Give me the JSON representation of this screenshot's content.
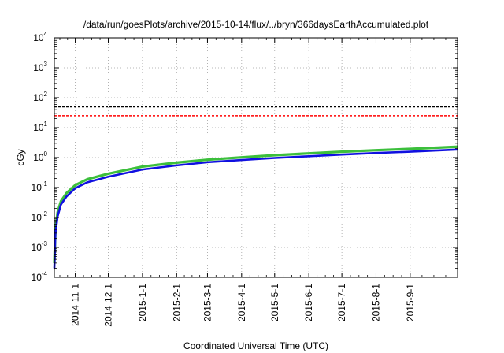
{
  "chart_data": {
    "type": "line",
    "title": "/data/run/goesPlots/archive/2015-10-14/flux/../bryn/366daysEarthAccumulated.plot",
    "xlabel": "Coordinated Universal Time (UTC)",
    "ylabel": "cGy",
    "yscale": "log",
    "x_start": "2014-10-13",
    "x_end": "2015-10-14",
    "ylim": [
      0.0001,
      10000
    ],
    "grid": true,
    "x_ticks": [
      "2014-11-1",
      "2014-12-1",
      "2015-1-1",
      "2015-2-1",
      "2015-3-1",
      "2015-4-1",
      "2015-5-1",
      "2015-6-1",
      "2015-7-1",
      "2015-8-1",
      "2015-9-1"
    ],
    "y_ticks": [
      {
        "base": "10",
        "exp": "-4"
      },
      {
        "base": "10",
        "exp": "-3"
      },
      {
        "base": "10",
        "exp": "-2"
      },
      {
        "base": "10",
        "exp": "-1"
      },
      {
        "base": "10",
        "exp": "0"
      },
      {
        "base": "10",
        "exp": "1"
      },
      {
        "base": "10",
        "exp": "2"
      },
      {
        "base": "10",
        "exp": "3"
      },
      {
        "base": "10",
        "exp": "4"
      }
    ],
    "thresholds": [
      {
        "value": 50,
        "color": "#000000",
        "style": "dashed"
      },
      {
        "value": 25,
        "color": "#ff0000",
        "style": "dashed"
      }
    ],
    "series": [
      {
        "color": "#3cbf3c",
        "x": [
          "2014-10-13",
          "2014-10-14",
          "2014-10-16",
          "2014-10-19",
          "2014-10-24",
          "2014-11-1",
          "2014-11-12",
          "2014-12-1",
          "2015-1-1",
          "2015-2-1",
          "2015-3-1",
          "2015-4-1",
          "2015-5-1",
          "2015-6-1",
          "2015-7-1",
          "2015-8-1",
          "2015-9-1",
          "2015-10-14"
        ],
        "y": [
          0.0003,
          0.004,
          0.015,
          0.035,
          0.065,
          0.12,
          0.19,
          0.29,
          0.5,
          0.68,
          0.85,
          1.02,
          1.2,
          1.38,
          1.56,
          1.76,
          1.95,
          2.3
        ]
      },
      {
        "color": "#1010e0",
        "x": [
          "2014-10-13",
          "2014-10-14",
          "2014-10-16",
          "2014-10-19",
          "2014-10-24",
          "2014-11-1",
          "2014-11-12",
          "2014-12-1",
          "2015-1-1",
          "2015-2-1",
          "2015-3-1",
          "2015-4-1",
          "2015-5-1",
          "2015-6-1",
          "2015-7-1",
          "2015-8-1",
          "2015-9-1",
          "2015-10-14"
        ],
        "y": [
          0.0002,
          0.003,
          0.011,
          0.027,
          0.05,
          0.095,
          0.15,
          0.23,
          0.4,
          0.55,
          0.7,
          0.83,
          0.97,
          1.11,
          1.26,
          1.42,
          1.57,
          1.85
        ]
      }
    ]
  }
}
